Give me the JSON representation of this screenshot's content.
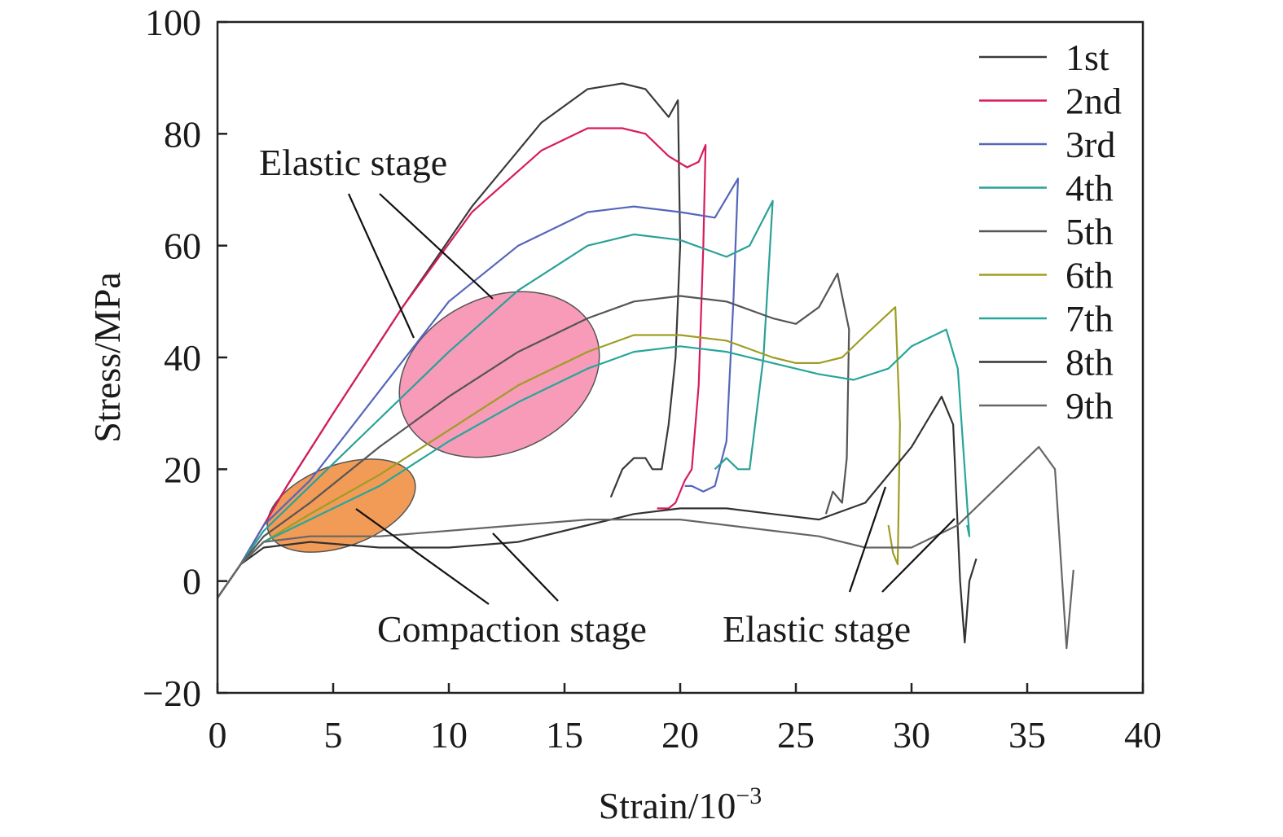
{
  "chart_data": {
    "type": "line",
    "xlabel": "Strain/10",
    "xlabel_exp": "−3",
    "ylabel": "Stress/MPa",
    "xlim": [
      0,
      40
    ],
    "ylim": [
      -20,
      100
    ],
    "xticks": [
      0,
      5,
      10,
      15,
      20,
      25,
      30,
      35,
      40
    ],
    "xtick_labels": [
      "0",
      "5",
      "10",
      "15",
      "20",
      "25",
      "30",
      "35",
      "40"
    ],
    "yticks": [
      -20,
      0,
      20,
      40,
      60,
      80,
      100
    ],
    "ytick_labels": [
      "−20",
      "0",
      "20",
      "40",
      "60",
      "80",
      "100"
    ],
    "grid": false,
    "legend_position": "top-right",
    "series": [
      {
        "name": "1st",
        "color": "#3a3a3a",
        "x": [
          0,
          1,
          2,
          3,
          5,
          8,
          11,
          14,
          16,
          17.5,
          18.5,
          19.5,
          19.9,
          20.0,
          19.8,
          19.5,
          19.2,
          18.8,
          18.5,
          18.0,
          17.5,
          17.0
        ],
        "y": [
          -3,
          3,
          10,
          17,
          30,
          49,
          67,
          82,
          88,
          89,
          88,
          83,
          86,
          60,
          40,
          28,
          20,
          20,
          22,
          22,
          20,
          15
        ]
      },
      {
        "name": "2nd",
        "color": "#d81b60",
        "x": [
          0,
          1,
          2,
          3,
          5,
          8,
          11,
          14,
          16,
          17.5,
          18.5,
          19.5,
          20.3,
          20.8,
          21.1,
          21.0,
          20.8,
          20.5,
          20.2,
          19.8,
          19.5,
          19.0
        ],
        "y": [
          -3,
          3,
          10,
          17,
          30,
          49,
          66,
          77,
          81,
          81,
          80,
          76,
          74,
          75,
          78,
          60,
          35,
          20,
          18,
          14,
          13,
          13
        ]
      },
      {
        "name": "3rd",
        "color": "#5566bb",
        "x": [
          0,
          1,
          2,
          4,
          7,
          10,
          13,
          16,
          18,
          20,
          21.5,
          22.5,
          22.3,
          22.0,
          21.5,
          21.0,
          20.5,
          20.2
        ],
        "y": [
          -3,
          3,
          10,
          18,
          34,
          50,
          60,
          66,
          67,
          66,
          65,
          72,
          50,
          25,
          17,
          16,
          17,
          17
        ]
      },
      {
        "name": "4th",
        "color": "#2aa198",
        "x": [
          0,
          1,
          2,
          4,
          7,
          10,
          13,
          16,
          18,
          20,
          22,
          23,
          24.0,
          23.6,
          23.0,
          22.5,
          22.0,
          21.5
        ],
        "y": [
          -3,
          3,
          9,
          17,
          29,
          41,
          52,
          60,
          62,
          61,
          58,
          60,
          68,
          40,
          20,
          20,
          22,
          20
        ]
      },
      {
        "name": "5th",
        "color": "#555555",
        "x": [
          0,
          1,
          2,
          4,
          7,
          10,
          13,
          16,
          18,
          20,
          22,
          24,
          25,
          26,
          26.8,
          27.3,
          27.2,
          27.0,
          26.6,
          26.3
        ],
        "y": [
          -3,
          3,
          8,
          14,
          24,
          33,
          41,
          47,
          50,
          51,
          50,
          47,
          46,
          49,
          55,
          45,
          22,
          14,
          16,
          12
        ]
      },
      {
        "name": "6th",
        "color": "#9e9d24",
        "x": [
          0,
          1,
          2,
          4,
          7,
          10,
          13,
          16,
          18,
          20,
          22,
          24,
          25,
          26,
          27,
          28,
          29.3,
          29.5,
          29.4,
          29.2,
          29.0
        ],
        "y": [
          -3,
          3,
          7,
          12,
          19,
          27,
          35,
          41,
          44,
          44,
          43,
          40,
          39,
          39,
          40,
          44,
          49,
          28,
          3,
          5,
          10
        ]
      },
      {
        "name": "7th",
        "color": "#26a69a",
        "x": [
          0,
          1,
          2,
          4,
          7,
          10,
          13,
          16,
          18,
          20,
          22,
          24,
          26,
          27.5,
          29,
          30,
          31.5,
          32.0,
          32.3,
          32.5,
          32.4
        ],
        "y": [
          -3,
          3,
          7,
          11,
          17,
          25,
          32,
          38,
          41,
          42,
          41,
          39,
          37,
          36,
          38,
          42,
          45,
          38,
          20,
          8,
          10
        ]
      },
      {
        "name": "8th",
        "color": "#333333",
        "x": [
          0,
          1,
          2,
          4,
          7,
          10,
          13,
          16,
          18,
          20,
          22,
          24,
          26,
          28,
          30,
          31.3,
          31.8,
          32.1,
          32.3,
          32.5,
          32.8
        ],
        "y": [
          -3,
          3,
          6,
          7,
          6,
          6,
          7,
          10,
          12,
          13,
          13,
          12,
          11,
          14,
          24,
          33,
          28,
          0,
          -11,
          0,
          4
        ]
      },
      {
        "name": "9th",
        "color": "#666666",
        "x": [
          0,
          1,
          2,
          4,
          7,
          10,
          13,
          16,
          18,
          20,
          22,
          24,
          26,
          28,
          30,
          32,
          34,
          35.5,
          36.2,
          36.7,
          37.0
        ],
        "y": [
          -3,
          3,
          7,
          8,
          8,
          9,
          10,
          11,
          11,
          11,
          10,
          9,
          8,
          6,
          6,
          10,
          18,
          24,
          20,
          -12,
          2
        ]
      }
    ],
    "annotations": [
      {
        "text": "Elastic stage",
        "kind": "upper-elastic"
      },
      {
        "text": "Compaction stage",
        "kind": "compaction"
      },
      {
        "text": "Elastic stage",
        "kind": "lower-elastic"
      }
    ],
    "region_colors": {
      "elastic_ellipse": "#f47aa0",
      "compaction_ellipse": "#ee8a3a"
    }
  }
}
